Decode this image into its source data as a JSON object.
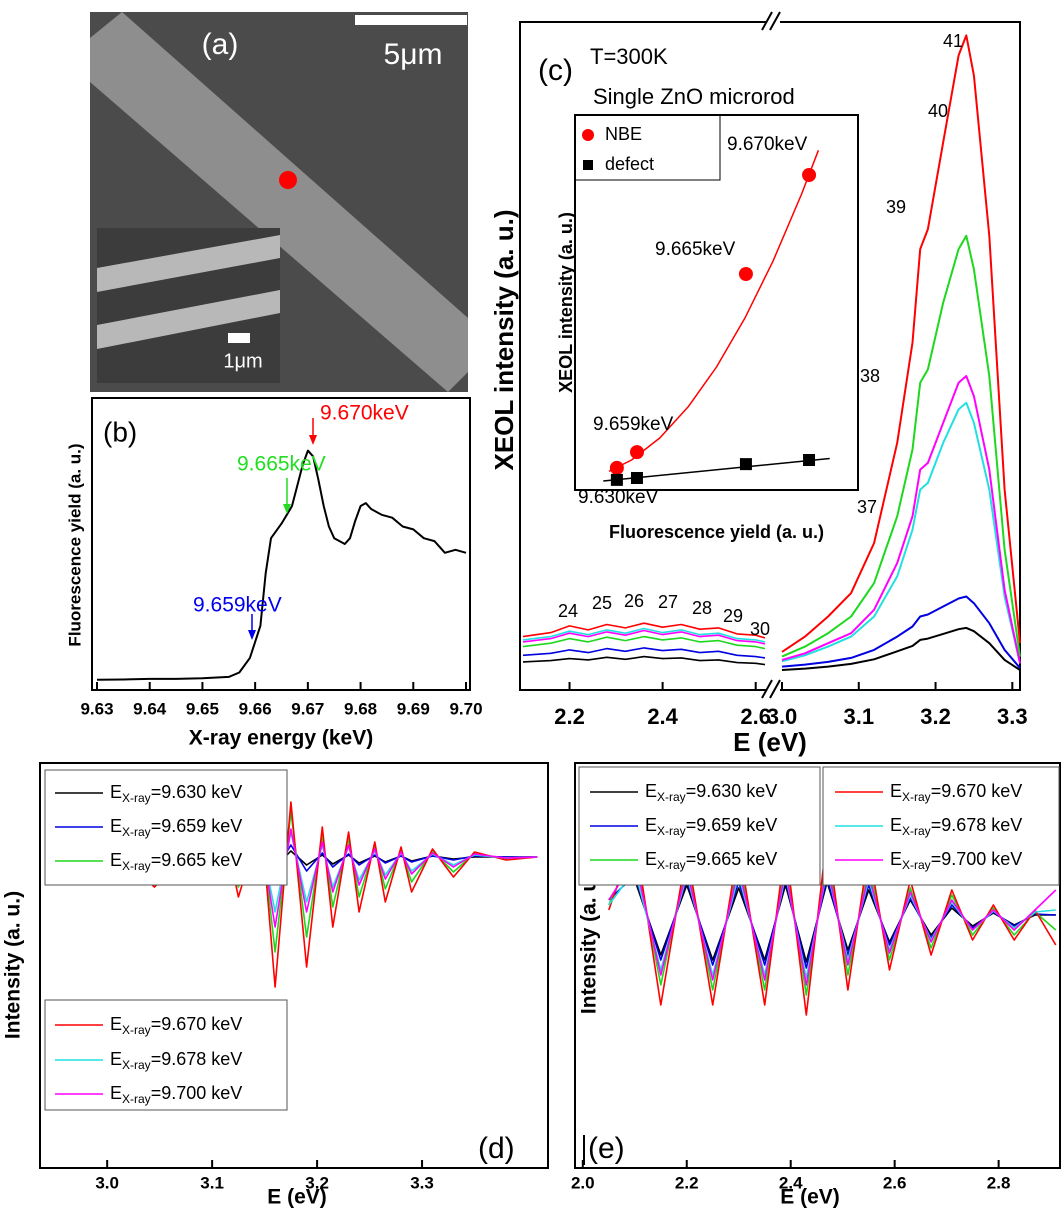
{
  "panel_a": {
    "label": "(a)",
    "scale_bar": "5μm",
    "inset_scale_bar": "1μm"
  },
  "chart_data": [
    {
      "type": "line",
      "panel_label": "(b)",
      "x_label": "X-ray energy (keV)",
      "y_label": "Fluorescence yield (a. u.)",
      "xlim": [
        9.63,
        9.7
      ],
      "ylim": [
        0,
        100
      ],
      "xticks": [
        9.63,
        9.64,
        9.65,
        9.66,
        9.67,
        9.68,
        9.69,
        {
          "value": 9.7,
          "label": "9.70"
        }
      ],
      "x": [
        9.63,
        9.635,
        9.64,
        9.645,
        9.65,
        9.655,
        9.657,
        9.659,
        9.661,
        9.662,
        9.663,
        9.665,
        9.666,
        9.667,
        9.668,
        9.669,
        9.67,
        9.671,
        9.672,
        9.673,
        9.674,
        9.675,
        9.676,
        9.677,
        9.678,
        9.679,
        9.68,
        9.681,
        9.682,
        9.684,
        9.686,
        9.688,
        9.69,
        9.692,
        9.694,
        9.696,
        9.698,
        9.7
      ],
      "values": [
        3.5,
        3.6,
        3.8,
        3.8,
        4,
        4.5,
        6,
        11,
        22,
        40,
        52,
        57,
        60,
        63,
        70,
        77,
        82,
        80,
        72,
        63,
        56,
        52,
        51,
        50,
        52,
        58,
        63,
        64,
        62,
        60,
        59,
        56,
        55,
        52,
        51,
        47,
        48,
        47
      ],
      "color": "#000000",
      "annotations": [
        {
          "text": "9.670keV",
          "color": "#ff0000"
        },
        {
          "text": "9.665keV",
          "color": "#22dd22"
        },
        {
          "text": "9.659keV",
          "color": "#0000ee"
        }
      ]
    },
    {
      "type": "line",
      "panel_label": "(c)",
      "annotations": [
        "T=300K",
        "Single ZnO microrod"
      ],
      "x_label": "E (eV)",
      "y_label": "XEOL intensity (a. u.)",
      "xlim": [
        2.1,
        2.62
      ],
      "xticks": [
        2.2,
        2.4,
        2.6
      ],
      "x2lim": [
        3.0,
        3.31
      ],
      "x2ticks": [
        {
          "value": 3,
          "label": "3.0"
        },
        3.1,
        3.2,
        3.3
      ],
      "ylim": [
        0,
        100
      ],
      "x": [
        2.1,
        2.16,
        2.2,
        2.24,
        2.28,
        2.32,
        2.36,
        2.4,
        2.44,
        2.48,
        2.52,
        2.56,
        2.6,
        2.62
      ],
      "x2": [
        3.0,
        3.03,
        3.06,
        3.09,
        3.12,
        3.15,
        3.17,
        3.18,
        3.19,
        3.21,
        3.23,
        3.24,
        3.25,
        3.27,
        3.29,
        3.31
      ],
      "series": [
        {
          "color": "#000000",
          "values": [
            4.2,
            4.4,
            4.7,
            4.5,
            4.9,
            4.6,
            5.0,
            4.7,
            4.8,
            4.4,
            4.5,
            4.1,
            4.0,
            3.8
          ],
          "values2": [
            3,
            3.2,
            3.5,
            3.9,
            4.6,
            5.8,
            6.6,
            7.5,
            7.7,
            8.4,
            9.1,
            9.3,
            8.8,
            7,
            4.5,
            3
          ]
        },
        {
          "color": "#0000e0",
          "values": [
            5.2,
            5.5,
            6.0,
            5.6,
            6.2,
            5.8,
            6.3,
            5.9,
            6.1,
            5.6,
            5.8,
            5.2,
            5.0,
            4.8
          ],
          "values2": [
            3.5,
            3.8,
            4.2,
            4.8,
            6,
            8,
            9.5,
            11,
            11.3,
            12.5,
            13.7,
            14,
            13,
            10,
            6,
            3.3
          ]
        },
        {
          "color": "#1ed81e",
          "values": [
            6.5,
            7.0,
            7.7,
            7.2,
            7.9,
            7.4,
            8.0,
            7.5,
            7.8,
            7.2,
            7.4,
            6.7,
            6.5,
            6.2
          ],
          "values2": [
            5,
            6.5,
            8.5,
            11,
            16,
            26,
            36,
            46,
            48,
            58,
            66,
            68,
            63,
            47,
            21,
            5
          ]
        },
        {
          "color": "#ff0000",
          "values": [
            8,
            8.6,
            9.6,
            9.0,
            9.8,
            9.3,
            10.0,
            9.4,
            9.8,
            9.1,
            9.3,
            8.4,
            8.2,
            7.8
          ],
          "values2": [
            5.7,
            8,
            11,
            14.5,
            22,
            37,
            52,
            66,
            69,
            82,
            95,
            98,
            92,
            68,
            30,
            7
          ]
        },
        {
          "color": "#22e0e0",
          "values": [
            7.5,
            8.0,
            8.8,
            8.3,
            9.0,
            8.5,
            9.2,
            8.6,
            9.0,
            8.3,
            8.5,
            7.7,
            7.5,
            7.2
          ],
          "values2": [
            4.3,
            5.2,
            6.5,
            8,
            11,
            17,
            24,
            30,
            31,
            37,
            42,
            43,
            40,
            30,
            14,
            4
          ]
        },
        {
          "color": "#ff00ff",
          "values": [
            7.2,
            7.7,
            8.5,
            8.0,
            8.7,
            8.2,
            8.9,
            8.3,
            8.7,
            8.0,
            8.2,
            7.4,
            7.2,
            6.9
          ],
          "values2": [
            4.5,
            5.5,
            7,
            8.5,
            12,
            19,
            26,
            33,
            34,
            40,
            46,
            47,
            44,
            33,
            15,
            4
          ]
        }
      ],
      "peak_labels": [
        24,
        25,
        26,
        27,
        28,
        29,
        30,
        37,
        38,
        39,
        40,
        41
      ]
    },
    {
      "type": "scatter",
      "x_label": "Fluorescence yield (a. u.)",
      "y_label": "XEOL intensity (a. u.)",
      "xlim": [
        0,
        100
      ],
      "ylim": [
        0,
        100
      ],
      "series": [
        {
          "name": "NBE",
          "color": "#ff0000",
          "marker": "circle",
          "x": [
            14.8,
            21.9,
            60.4,
            82.7
          ],
          "values": [
            5.9,
            10.1,
            57.6,
            84
          ],
          "fit_x": [
            12,
            20,
            30,
            40,
            50,
            60,
            70,
            80,
            86
          ],
          "fit_values": [
            5.0,
            8.0,
            13.9,
            22.2,
            32.8,
            45.8,
            61.1,
            78.8,
            90.6
          ]
        },
        {
          "name": "defect",
          "color": "#000000",
          "marker": "square",
          "x": [
            14.8,
            21.9,
            60.4,
            82.7
          ],
          "values": [
            2.7,
            3.2,
            6.9,
            8.0
          ],
          "fit_x": [
            10,
            90
          ],
          "fit_values": [
            2.4,
            8.4
          ]
        }
      ],
      "point_labels": [
        "9.630keV",
        "9.659keV",
        "9.665keV",
        "9.670keV"
      ]
    },
    {
      "type": "line",
      "panel_label": "(d)",
      "x_label": "E (eV)",
      "y_label": "Intensity (a. u.)",
      "legend_symbol": "E",
      "legend_subscript": "X-ray",
      "xlim": [
        2.936,
        3.42
      ],
      "ylim": [
        -311,
        94
      ],
      "xticks": [
        {
          "value": 3,
          "label": "3.0"
        },
        3.1,
        3.2,
        3.3
      ],
      "x": [
        2.95,
        2.98,
        3.01,
        3.045,
        3.07,
        3.09,
        3.11,
        3.125,
        3.135,
        3.145,
        3.16,
        3.175,
        3.19,
        3.205,
        3.215,
        3.23,
        3.24,
        3.255,
        3.265,
        3.28,
        3.29,
        3.31,
        3.33,
        3.35,
        3.38,
        3.41
      ],
      "series": [
        {
          "name": "=9.630 keV",
          "color": "#000000",
          "values": [
            1,
            1,
            0,
            -2,
            0,
            1,
            2,
            -5,
            -1,
            4,
            -10,
            6,
            -8,
            2,
            -7,
            2,
            -6,
            1,
            -5,
            1,
            -4,
            1,
            -2,
            0,
            0,
            0
          ]
        },
        {
          "name": "=9.659 keV",
          "color": "#0000e0",
          "values": [
            0,
            1,
            0,
            -3,
            0,
            1,
            4,
            -6,
            -1,
            8,
            -15,
            12,
            -14,
            4,
            -10,
            3,
            -8,
            2,
            -6,
            1,
            -5,
            1,
            -3,
            1,
            0,
            0
          ]
        },
        {
          "name": "=9.665 keV",
          "color": "#1ed81e",
          "values": [
            6,
            8,
            4,
            -22,
            -4,
            4,
            26,
            -30,
            -4,
            45,
            -95,
            45,
            -80,
            22,
            -50,
            18,
            -40,
            11,
            -32,
            7,
            -25,
            6,
            -15,
            4,
            -2,
            0
          ]
        },
        {
          "name": "=9.670 keV",
          "color": "#ff0000",
          "values": [
            8,
            10,
            5,
            -30,
            -5,
            5,
            35,
            -40,
            -5,
            60,
            -130,
            55,
            -110,
            30,
            -70,
            25,
            -55,
            15,
            -45,
            10,
            -35,
            8,
            -20,
            5,
            -3,
            0
          ]
        },
        {
          "name": "=9.678 keV",
          "color": "#22e0e0",
          "values": [
            3,
            5,
            2,
            -10,
            -2,
            2,
            15,
            -17,
            -2,
            25,
            -55,
            25,
            -45,
            12,
            -30,
            10,
            -23,
            6,
            -18,
            4,
            -14,
            3,
            -8,
            2,
            -1,
            0
          ]
        },
        {
          "name": "=9.700 keV",
          "color": "#ff00ff",
          "values": [
            4,
            6,
            3,
            -12,
            -3,
            3,
            18,
            -20,
            -3,
            30,
            -70,
            28,
            -55,
            15,
            -35,
            12,
            -28,
            8,
            -22,
            5,
            -17,
            4,
            -10,
            3,
            -1,
            0
          ]
        }
      ]
    },
    {
      "type": "line",
      "panel_label": "(e)",
      "x_label": "E (eV)",
      "y_label": "Intensity (a. u.)",
      "legend_symbol": "E",
      "legend_subscript": "X-ray",
      "xlim": [
        1.985,
        2.92
      ],
      "ylim": [
        -248,
        157
      ],
      "xticks": [
        {
          "value": 2,
          "label": "2.0"
        },
        2.2,
        2.4,
        2.6,
        2.8
      ],
      "x": [
        2.05,
        2.1,
        2.15,
        2.2,
        2.25,
        2.3,
        2.35,
        2.39,
        2.43,
        2.47,
        2.51,
        2.55,
        2.59,
        2.63,
        2.67,
        2.71,
        2.75,
        2.79,
        2.83,
        2.87,
        2.91
      ],
      "series": [
        {
          "name": "=9.630 keV",
          "color": "#000000",
          "values": [
            40,
            40,
            -35,
            35,
            -40,
            32,
            -40,
            35,
            -42,
            38,
            -30,
            30,
            -22,
            20,
            -15,
            12,
            -6,
            7,
            -5,
            5,
            5
          ]
        },
        {
          "name": "=9.659 keV",
          "color": "#0000e0",
          "values": [
            20,
            45,
            -40,
            40,
            -45,
            38,
            -45,
            40,
            -48,
            42,
            -35,
            35,
            -25,
            22,
            -18,
            15,
            -8,
            8,
            -6,
            6,
            5
          ]
        },
        {
          "name": "=9.665 keV",
          "color": "#1ed81e",
          "values": [
            15,
            70,
            -65,
            60,
            -70,
            60,
            -70,
            60,
            -75,
            65,
            -55,
            55,
            -40,
            32,
            -28,
            25,
            -15,
            12,
            -15,
            8,
            -10
          ]
        },
        {
          "name": "=9.670 keV",
          "color": "#ff0000",
          "values": [
            10,
            85,
            -85,
            70,
            -85,
            75,
            -85,
            75,
            -95,
            85,
            -70,
            70,
            -50,
            40,
            -35,
            30,
            -20,
            15,
            -20,
            10,
            -25
          ]
        },
        {
          "name": "=9.678 keV",
          "color": "#22e0e0",
          "values": [
            15,
            50,
            -50,
            45,
            -55,
            45,
            -55,
            45,
            -58,
            50,
            -40,
            40,
            -30,
            25,
            -20,
            18,
            -10,
            9,
            -8,
            8,
            10
          ]
        },
        {
          "name": "=9.700 keV",
          "color": "#ff00ff",
          "values": [
            20,
            60,
            -55,
            50,
            -60,
            52,
            -60,
            50,
            -65,
            55,
            -45,
            45,
            -33,
            28,
            -22,
            20,
            -10,
            10,
            -10,
            10,
            30
          ]
        }
      ]
    }
  ]
}
